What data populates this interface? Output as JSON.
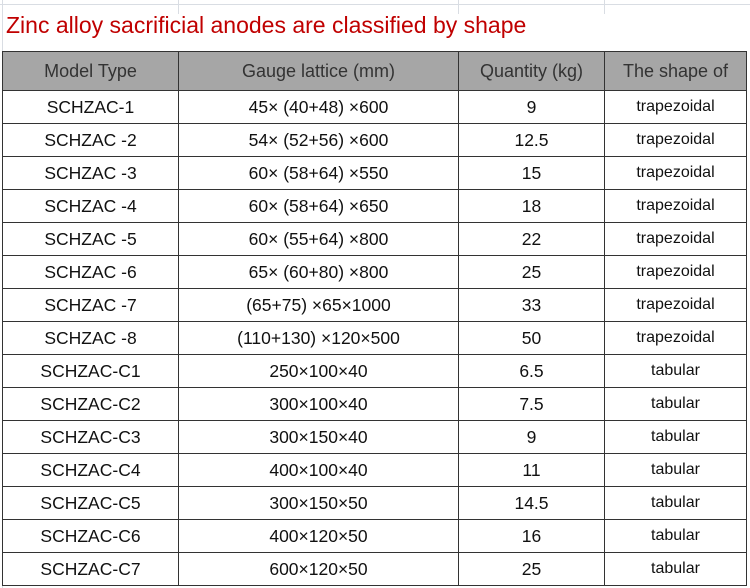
{
  "title": "Zinc alloy sacrificial anodes are classified by shape",
  "colors": {
    "title": "#c00000",
    "header_bg": "#a6a6a6"
  },
  "headers": [
    "Model Type",
    "Gauge lattice (mm)",
    "Quantity (kg)",
    "The shape of"
  ],
  "rows": [
    [
      "SCHZAC-1",
      "45× (40+48) ×600",
      "9",
      "trapezoidal"
    ],
    [
      "SCHZAC -2",
      "54× (52+56) ×600",
      "12.5",
      "trapezoidal"
    ],
    [
      "SCHZAC -3",
      "60× (58+64) ×550",
      "15",
      "trapezoidal"
    ],
    [
      "SCHZAC -4",
      "60× (58+64) ×650",
      "18",
      "trapezoidal"
    ],
    [
      "SCHZAC -5",
      "60× (55+64) ×800",
      "22",
      "trapezoidal"
    ],
    [
      "SCHZAC -6",
      "65× (60+80) ×800",
      "25",
      "trapezoidal"
    ],
    [
      "SCHZAC -7",
      "(65+75) ×65×1000",
      "33",
      "trapezoidal"
    ],
    [
      "SCHZAC -8",
      "(110+130) ×120×500",
      "50",
      "trapezoidal"
    ],
    [
      "SCHZAC-C1",
      "250×100×40",
      "6.5",
      "tabular"
    ],
    [
      "SCHZAC-C2",
      "300×100×40",
      "7.5",
      "tabular"
    ],
    [
      "SCHZAC-C3",
      "300×150×40",
      "9",
      "tabular"
    ],
    [
      "SCHZAC-C4",
      "400×100×40",
      "11",
      "tabular"
    ],
    [
      "SCHZAC-C5",
      "300×150×50",
      "14.5",
      "tabular"
    ],
    [
      "SCHZAC-C6",
      "400×120×50",
      "16",
      "tabular"
    ],
    [
      "SCHZAC-C7",
      "600×120×50",
      "25",
      "tabular"
    ]
  ]
}
